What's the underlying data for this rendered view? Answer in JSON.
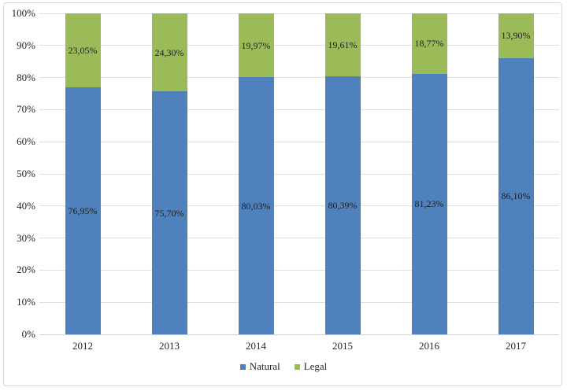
{
  "chart_data": {
    "type": "bar",
    "stacked": true,
    "percent_stacked": true,
    "title": "",
    "xlabel": "",
    "ylabel": "",
    "categories": [
      "2012",
      "2013",
      "2014",
      "2015",
      "2016",
      "2017"
    ],
    "series": [
      {
        "name": "Natural",
        "color": "#4F81BD",
        "values": [
          76.95,
          75.7,
          80.03,
          80.39,
          81.23,
          86.1
        ],
        "labels": [
          "76,95%",
          "75,70%",
          "80,03%",
          "80,39%",
          "81,23%",
          "86,10%"
        ]
      },
      {
        "name": "Legal",
        "color": "#9BBB59",
        "values": [
          23.05,
          24.3,
          19.97,
          19.61,
          18.77,
          13.9
        ],
        "labels": [
          "23,05%",
          "24,30%",
          "19,97%",
          "19,61%",
          "18,77%",
          "13,90%"
        ]
      }
    ],
    "ylim": [
      0,
      100
    ],
    "ytick_step": 10,
    "yticks": [
      "0%",
      "10%",
      "20%",
      "30%",
      "40%",
      "50%",
      "60%",
      "70%",
      "80%",
      "90%",
      "100%"
    ],
    "grid": true,
    "legend_position": "bottom",
    "legend_entries": [
      "Natural",
      "Legal"
    ]
  },
  "colors": {
    "gridline": "#e0e0e0",
    "axis_line": "#cfcfcf",
    "frame_border": "#d9d9d9",
    "text": "#262626"
  }
}
